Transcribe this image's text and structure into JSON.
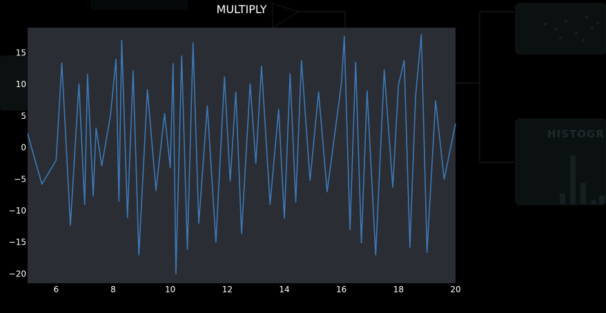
{
  "title": "MULTIPLY",
  "background_nodes": {
    "histogram_label": "HISTOGR"
  },
  "colors": {
    "page_background": "#000000",
    "plot_background": "#2a2d33",
    "line": "#3d7ab8",
    "text": "#ffffff",
    "ghost_panel": "#0b1010"
  },
  "chart_data": {
    "type": "line",
    "title": "MULTIPLY",
    "xlabel": "",
    "ylabel": "",
    "xlim": [
      5,
      20
    ],
    "ylim": [
      -21.5,
      19
    ],
    "x_ticks": [
      6,
      8,
      10,
      12,
      14,
      16,
      18,
      20
    ],
    "y_ticks": [
      15,
      10,
      5,
      0,
      -5,
      -10,
      -15,
      -20
    ],
    "grid": false,
    "legend": "none",
    "series": [
      {
        "x": [
          5.0,
          5.5,
          6.0,
          6.2,
          6.5,
          6.8,
          7.0,
          7.1,
          7.3,
          7.4,
          7.6,
          7.9,
          8.1,
          8.2,
          8.3,
          8.5,
          8.7,
          8.9,
          9.2,
          9.5,
          9.8,
          10.0,
          10.1,
          10.2,
          10.4,
          10.6,
          10.8,
          11.0,
          11.3,
          11.6,
          11.9,
          12.1,
          12.3,
          12.5,
          12.8,
          13.0,
          13.2,
          13.5,
          13.8,
          14.0,
          14.2,
          14.4,
          14.6,
          14.9,
          15.2,
          15.5,
          15.8,
          16.0,
          16.1,
          16.3,
          16.5,
          16.7,
          16.9,
          17.2,
          17.5,
          17.8,
          18.0,
          18.2,
          18.4,
          18.6,
          18.8,
          19.0,
          19.3,
          19.6,
          20.0
        ],
        "y": [
          2.2,
          -5.8,
          -2.0,
          13.4,
          -12.3,
          10.1,
          -9.0,
          11.6,
          -7.7,
          3.1,
          -2.9,
          5.0,
          14.0,
          -8.5,
          17.0,
          -11.1,
          12.2,
          -17.0,
          9.2,
          -6.8,
          5.4,
          -3.2,
          13.3,
          -20.0,
          14.5,
          -16.1,
          16.6,
          -12.0,
          6.6,
          -15.0,
          11.2,
          -5.3,
          8.8,
          -13.6,
          10.1,
          -2.5,
          12.9,
          -9.0,
          6.1,
          -11.2,
          11.7,
          -8.6,
          13.8,
          -5.2,
          8.8,
          -7.0,
          3.3,
          10.2,
          17.6,
          -13.0,
          13.5,
          -15.1,
          9.0,
          -17.0,
          12.3,
          -6.3,
          9.9,
          13.8,
          -15.8,
          8.1,
          17.9,
          -16.6,
          7.4,
          -5.0,
          3.8
        ]
      }
    ]
  }
}
